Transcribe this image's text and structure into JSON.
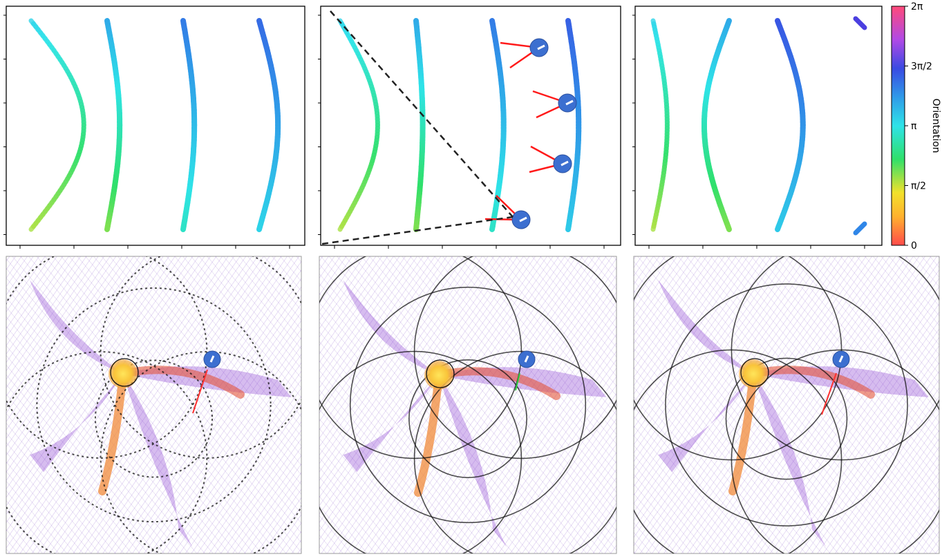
{
  "chart_data": {
    "type": "scatter",
    "colorbar": {
      "label": "Orientation",
      "ticks": [
        "0",
        "π/2",
        "π",
        "3π/2",
        "2π"
      ],
      "range": [
        0,
        6.2832
      ],
      "colors": [
        "#ff4b4b",
        "#ffb12e",
        "#f2e12b",
        "#2fe06a",
        "#2ee3e8",
        "#2f9ae8",
        "#3a4ae2",
        "#b14ae6",
        "#ff4a7a"
      ]
    },
    "top_panels": [
      {
        "arcs": [
          {
            "bulge": 0.26,
            "radius": 0.48,
            "o_top": 3.3,
            "o_bottom": 1.7
          },
          {
            "bulge": 0.38,
            "radius": 0.48,
            "o_top": 3.75,
            "o_bottom": 1.9
          },
          {
            "bulge": 0.63,
            "radius": 0.48,
            "o_top": 4.2,
            "o_bottom": 2.9
          },
          {
            "bulge": 0.91,
            "radius": 0.48,
            "o_top": 4.35,
            "o_bottom": 3.3
          }
        ]
      },
      {
        "arcs": [
          {
            "bulge": 0.19,
            "radius": 0.48,
            "o_top": 3.3,
            "o_bottom": 1.7
          },
          {
            "bulge": 0.34,
            "radius": 0.48,
            "o_top": 3.75,
            "o_bottom": 1.9
          },
          {
            "bulge": 0.61,
            "radius": 0.48,
            "o_top": 4.2,
            "o_bottom": 2.9
          },
          {
            "bulge": 0.86,
            "radius": 0.48,
            "o_top": 4.45,
            "o_bottom": 3.4
          }
        ],
        "markers": 4
      },
      {
        "arcs": [
          {
            "bulge": 0.13,
            "radius": 0.48,
            "o_top": 3.3,
            "o_bottom": 1.7
          },
          {
            "bulge": 0.28,
            "radius": 0.48,
            "o_top": 3.75,
            "o_bottom": 1.9
          },
          {
            "bulge": 0.68,
            "radius": 0.48,
            "o_top": 4.55,
            "o_bottom": 3.4
          }
        ]
      }
    ],
    "bottom_panels": [
      {
        "circle_grids": 2
      },
      {
        "circle_grids": 2
      },
      {
        "circle_grids": 2
      }
    ],
    "grid": false
  }
}
